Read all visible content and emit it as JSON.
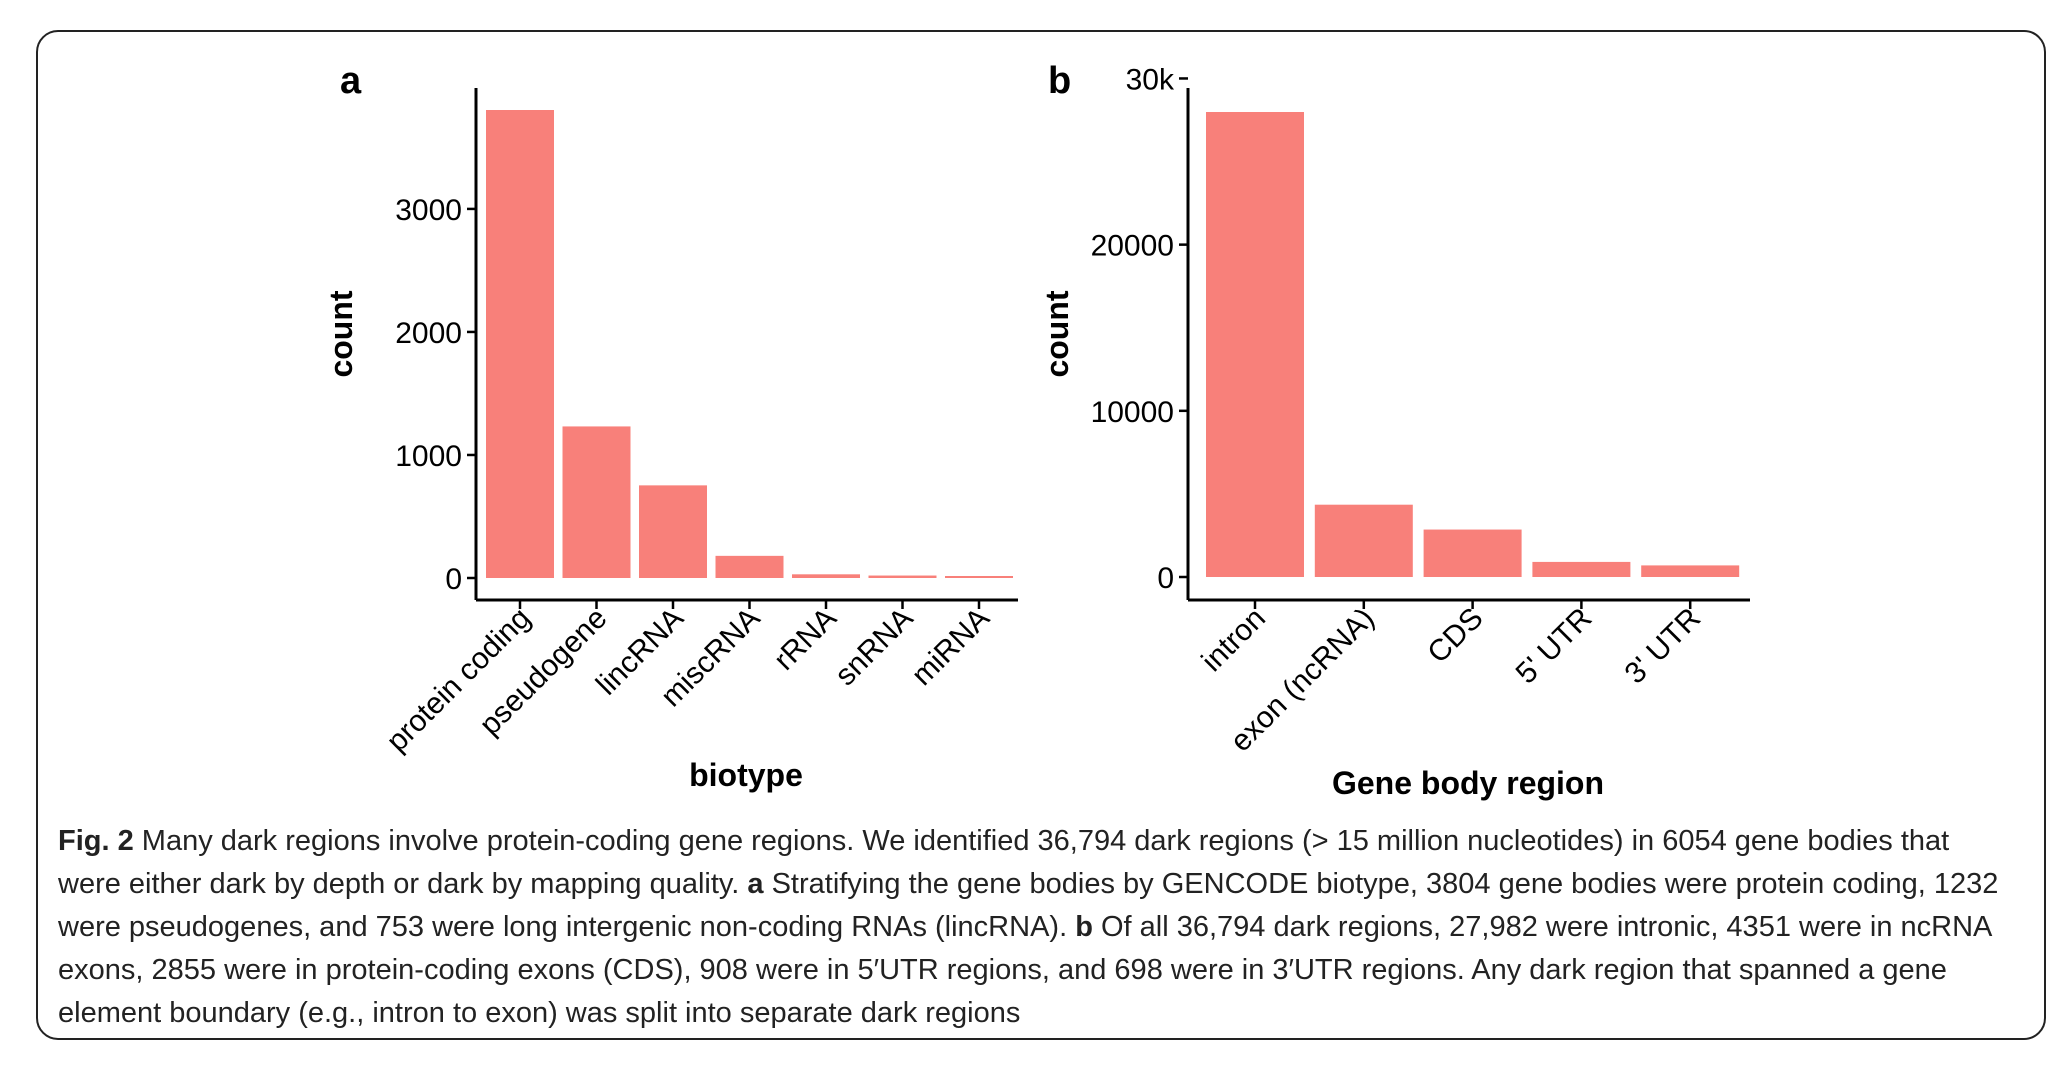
{
  "colors": {
    "bar": "#F8807A",
    "axis": "#000000",
    "text": "#222222"
  },
  "chart_data": [
    {
      "panel": "a",
      "type": "bar",
      "categories": [
        "protein coding",
        "pseudogene",
        "lincRNA",
        "miscRNA",
        "rRNA",
        "snRNA",
        "miRNA"
      ],
      "values": [
        3804,
        1232,
        753,
        180,
        30,
        20,
        15
      ],
      "xlabel": "biotype",
      "ylabel": "count",
      "yticks": [
        0,
        1000,
        2000,
        3000
      ],
      "ytick_labels": [
        "0",
        "1000",
        "2000",
        "3000"
      ],
      "ylim": [
        -80,
        4000
      ],
      "grid": false
    },
    {
      "panel": "b",
      "type": "bar",
      "categories": [
        "intron",
        "exon (ncRNA)",
        "CDS",
        "5' UTR",
        "3' UTR"
      ],
      "values": [
        27982,
        4351,
        2855,
        908,
        698
      ],
      "xlabel": "Gene body region",
      "ylabel": "count",
      "yticks": [
        0,
        10000,
        20000,
        30000
      ],
      "ytick_labels": [
        "0",
        "10000",
        "20000",
        "30k"
      ],
      "ylim": [
        -1500,
        30000
      ],
      "grid": false
    }
  ],
  "caption": {
    "fig_label": "Fig. 2",
    "text_1": " Many dark regions involve protein-coding gene regions. We identified 36,794 dark regions (> 15 million nucleotides) in 6054 gene bodies that were either dark by depth or dark by mapping quality. ",
    "a_label": "a",
    "text_a": " Stratifying the gene bodies by GENCODE biotype, 3804 gene bodies were protein coding, 1232 were pseudogenes, and 753 were long intergenic non-coding RNAs (lincRNA). ",
    "b_label": "b",
    "text_b": " Of all 36,794 dark regions, 27,982 were intronic, 4351 were in ncRNA exons, 2855 were in protein-coding exons (CDS), 908 were in 5′UTR regions, and 698 were in 3′UTR regions. Any dark region that spanned a gene element boundary (e.g., intron to exon) was split into separate dark regions"
  }
}
